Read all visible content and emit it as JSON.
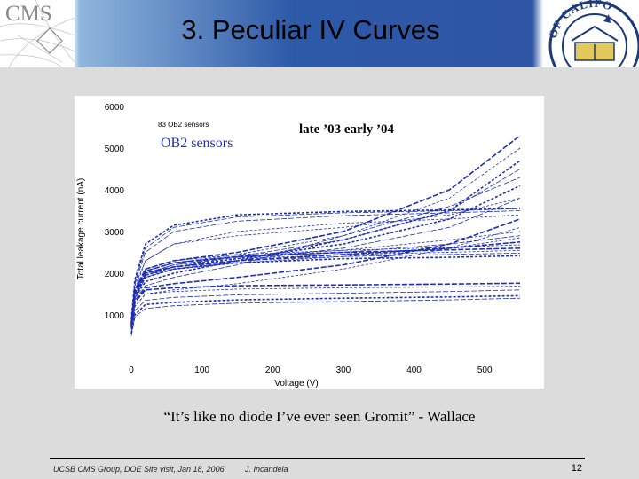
{
  "header": {
    "logo_text": "CMS",
    "title": "3. Peculiar IV Curves",
    "seal_text": "OF CALIFO"
  },
  "chart_data": {
    "type": "line",
    "title": "",
    "ylabel": "Total leakage current (nA)",
    "xlabel": "Voltage (V)",
    "xlim": [
      0,
      550
    ],
    "ylim": [
      0,
      6000
    ],
    "xticks": [
      0,
      100,
      200,
      300,
      400,
      500
    ],
    "yticks": [
      1000,
      2000,
      3000,
      4000,
      5000,
      6000
    ],
    "annotations": [
      "83 OB2 sensors",
      "OB2 sensors",
      "late ’03 early ’04"
    ],
    "series_color": "#1e2fb5",
    "series": [
      {
        "x": [
          0,
          5,
          20,
          60,
          150,
          300,
          450,
          550
        ],
        "y": [
          700,
          1300,
          1600,
          1650,
          1700,
          1720,
          1740,
          1760
        ]
      },
      {
        "x": [
          0,
          5,
          20,
          60,
          150,
          300,
          450,
          550
        ],
        "y": [
          650,
          1200,
          1500,
          1560,
          1620,
          1650,
          1670,
          1690
        ]
      },
      {
        "x": [
          0,
          5,
          20,
          60,
          150,
          300,
          450,
          550
        ],
        "y": [
          600,
          1100,
          1350,
          1420,
          1480,
          1520,
          1560,
          1600
        ]
      },
      {
        "x": [
          0,
          5,
          20,
          60,
          150,
          300,
          450,
          550
        ],
        "y": [
          550,
          1000,
          1250,
          1300,
          1360,
          1400,
          1430,
          1460
        ]
      },
      {
        "x": [
          0,
          5,
          20,
          60,
          150,
          300,
          450,
          550
        ],
        "y": [
          500,
          950,
          1150,
          1220,
          1280,
          1320,
          1360,
          1400
        ]
      },
      {
        "x": [
          0,
          5,
          20,
          60,
          150,
          300,
          450,
          550
        ],
        "y": [
          800,
          1500,
          2000,
          2200,
          2350,
          2450,
          2500,
          2550
        ]
      },
      {
        "x": [
          0,
          5,
          20,
          60,
          150,
          300,
          450,
          550
        ],
        "y": [
          800,
          1550,
          2050,
          2250,
          2400,
          2500,
          2560,
          2600
        ]
      },
      {
        "x": [
          0,
          5,
          20,
          60,
          150,
          300,
          450,
          550
        ],
        "y": [
          820,
          1600,
          2100,
          2300,
          2450,
          2550,
          2620,
          2680
        ]
      },
      {
        "x": [
          0,
          5,
          20,
          60,
          150,
          300,
          450,
          550
        ],
        "y": [
          780,
          1500,
          1950,
          2150,
          2300,
          2400,
          2450,
          2480
        ]
      },
      {
        "x": [
          0,
          5,
          20,
          60,
          150,
          300,
          450,
          550
        ],
        "y": [
          760,
          1450,
          1900,
          2100,
          2250,
          2350,
          2380,
          2420
        ]
      },
      {
        "x": [
          0,
          5,
          20,
          60,
          150,
          300,
          450,
          550
        ],
        "y": [
          800,
          1550,
          2000,
          2200,
          2380,
          2500,
          2700,
          2900
        ]
      },
      {
        "x": [
          0,
          5,
          20,
          60,
          150,
          300,
          450,
          550
        ],
        "y": [
          820,
          1600,
          2050,
          2250,
          2400,
          2550,
          2800,
          3000
        ]
      },
      {
        "x": [
          0,
          5,
          20,
          60,
          150,
          300,
          450,
          550
        ],
        "y": [
          800,
          1500,
          2000,
          2150,
          2300,
          2450,
          2600,
          2750
        ]
      },
      {
        "x": [
          0,
          5,
          20,
          60,
          150,
          300,
          450,
          550
        ],
        "y": [
          760,
          1450,
          1950,
          2100,
          2250,
          2400,
          2600,
          2850
        ]
      },
      {
        "x": [
          0,
          5,
          20,
          60,
          150,
          300,
          450,
          550
        ],
        "y": [
          900,
          1800,
          2600,
          3100,
          3350,
          3450,
          3500,
          3550
        ]
      },
      {
        "x": [
          0,
          5,
          20,
          60,
          150,
          300,
          450,
          550
        ],
        "y": [
          900,
          1850,
          2700,
          3150,
          3400,
          3480,
          3520,
          3560
        ]
      },
      {
        "x": [
          0,
          5,
          20,
          60,
          150,
          300,
          450,
          550
        ],
        "y": [
          880,
          1750,
          2500,
          3000,
          3250,
          3380,
          3450,
          3500
        ]
      },
      {
        "x": [
          0,
          5,
          20,
          60,
          150,
          300,
          450,
          550
        ],
        "y": [
          850,
          1700,
          2300,
          2700,
          3000,
          3200,
          3300,
          3400
        ]
      },
      {
        "x": [
          0,
          5,
          20,
          60,
          150,
          300,
          450,
          550
        ],
        "y": [
          800,
          1600,
          2100,
          2300,
          2500,
          3000,
          4000,
          5300
        ]
      },
      {
        "x": [
          0,
          5,
          20,
          60,
          150,
          300,
          450,
          550
        ],
        "y": [
          800,
          1550,
          2050,
          2250,
          2450,
          2900,
          3800,
          5000
        ]
      },
      {
        "x": [
          0,
          5,
          20,
          60,
          150,
          300,
          450,
          550
        ],
        "y": [
          780,
          1500,
          2000,
          2200,
          2400,
          2800,
          3500,
          4500
        ]
      },
      {
        "x": [
          0,
          5,
          20,
          60,
          150,
          300,
          450,
          550
        ],
        "y": [
          760,
          1450,
          1950,
          2150,
          2350,
          2700,
          3300,
          4100
        ]
      },
      {
        "x": [
          0,
          5,
          20,
          60,
          150,
          300,
          450,
          550
        ],
        "y": [
          740,
          1400,
          1900,
          2100,
          2300,
          2600,
          3100,
          3800
        ]
      },
      {
        "x": [
          0,
          5,
          20,
          60,
          150,
          300,
          450,
          550
        ],
        "y": [
          800,
          1600,
          2300,
          2700,
          2900,
          3100,
          3400,
          3800
        ]
      },
      {
        "x": [
          0,
          5,
          20,
          60,
          150,
          300,
          450,
          550
        ],
        "y": [
          700,
          1300,
          1650,
          1750,
          1900,
          2200,
          2700,
          3300
        ]
      },
      {
        "x": [
          0,
          5,
          20,
          60,
          150,
          300,
          450,
          550
        ],
        "y": [
          650,
          1200,
          1500,
          1600,
          1750,
          2100,
          2600,
          3100
        ]
      },
      {
        "x": [
          0,
          5,
          20,
          60,
          150,
          300,
          450,
          550
        ],
        "y": [
          700,
          1350,
          1700,
          1900,
          2200,
          2900,
          3600,
          4300
        ]
      },
      {
        "x": [
          0,
          5,
          20,
          60,
          150,
          300,
          450,
          550
        ],
        "y": [
          720,
          1400,
          1800,
          2000,
          2300,
          2800,
          3500,
          4700
        ]
      }
    ]
  },
  "quote": "“It’s like no diode I’ve ever seen Gromit” - Wallace",
  "footer": {
    "left": "UCSB CMS Group, DOE Site visit, Jan 18, 2006",
    "author": "J. Incandela",
    "page": "12"
  }
}
